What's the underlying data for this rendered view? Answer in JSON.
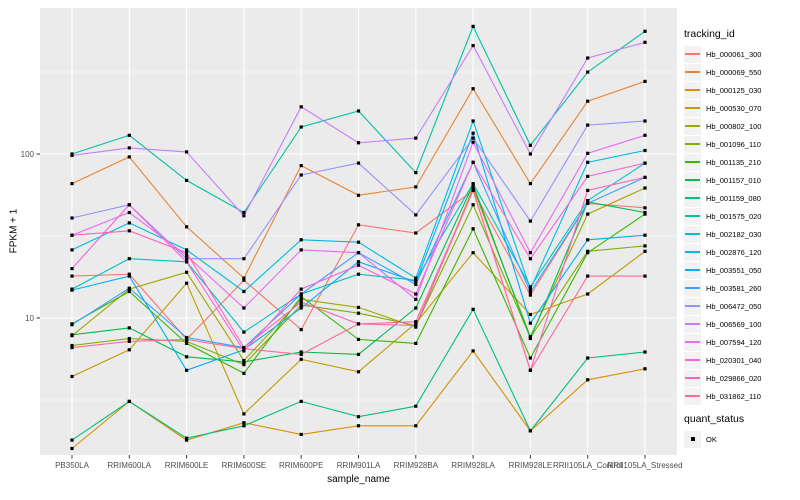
{
  "figure": {
    "background": "#FFFFFF",
    "panel_background": "#EBEBEB",
    "grid_color": "#FFFFFF",
    "tick_color": "#333333",
    "tick_label_color": "#4D4D4D",
    "point_color": "#000000",
    "legend_key_background": "#F2F2F2"
  },
  "chart_data": {
    "type": "line",
    "title": "",
    "xlabel": "sample_name",
    "ylabel": "FPKM + 1",
    "y_scale": "log10",
    "y_ticks": [
      10,
      100
    ],
    "y_minor_ticks": [
      3.162,
      31.62,
      316.2
    ],
    "y_range": [
      1.46,
      776
    ],
    "grid": true,
    "marker": "square",
    "legend_position": "right",
    "categories": [
      "PB350LA",
      "RRIM600LA",
      "RRIM600LE",
      "RRIM600SE",
      "RRIM600PE",
      "RRIM901LA",
      "RRIM928BA",
      "RRIM928LA",
      "RRIM928LE",
      "RRII105LA_Control",
      "RRII105LA_Stressed"
    ],
    "series": [
      {
        "name": "Hb_000061_300",
        "color": "#F8766D",
        "values": [
          18,
          18.5,
          7.4,
          17,
          8.5,
          37,
          33,
          60,
          13.8,
          50,
          47
        ]
      },
      {
        "name": "Hb_000069_550",
        "color": "#EA8331",
        "values": [
          66,
          96,
          36,
          17.5,
          85,
          56,
          63,
          250,
          66,
          210,
          277
        ]
      },
      {
        "name": "Hb_000125_030",
        "color": "#D89000",
        "values": [
          1.6,
          3.1,
          1.8,
          2.3,
          1.95,
          2.2,
          2.2,
          6.3,
          2.05,
          4.2,
          4.9
        ]
      },
      {
        "name": "Hb_000530_070",
        "color": "#C09B00",
        "values": [
          4.4,
          6.4,
          16.3,
          2.6,
          5.6,
          4.7,
          9.3,
          25,
          10.5,
          14,
          25.5
        ]
      },
      {
        "name": "Hb_000802_100",
        "color": "#A3A500",
        "values": [
          7.8,
          15,
          19,
          5.5,
          13,
          11.6,
          8.8,
          62,
          7.7,
          43,
          62
        ]
      },
      {
        "name": "Hb_001096_110",
        "color": "#7CAE00",
        "values": [
          6.8,
          7.5,
          7.2,
          5.2,
          12,
          10.7,
          9,
          49,
          7.6,
          25.5,
          27.5
        ]
      },
      {
        "name": "Hb_001135_210",
        "color": "#39B600",
        "values": [
          9.2,
          14.5,
          7,
          4.6,
          13.5,
          7.4,
          7,
          35,
          5.7,
          25,
          43
        ]
      },
      {
        "name": "Hb_001157_010",
        "color": "#00BB4E",
        "values": [
          7.9,
          8.7,
          5.8,
          5.4,
          6.2,
          6,
          11.5,
          65,
          7.5,
          51,
          44
        ]
      },
      {
        "name": "Hb_001159_080",
        "color": "#00BF7D",
        "values": [
          1.8,
          3.1,
          1.85,
          2.2,
          3.1,
          2.5,
          2.9,
          11.3,
          2.05,
          5.7,
          6.2
        ]
      },
      {
        "name": "Hb_001575_020",
        "color": "#00C1A3",
        "values": [
          100,
          130,
          69,
          44,
          146,
          183,
          77,
          600,
          113,
          316,
          560
        ]
      },
      {
        "name": "Hb_002182_030",
        "color": "#00BFC4",
        "values": [
          15,
          23,
          22,
          8.2,
          14,
          18.5,
          17,
          66,
          15.5,
          52,
          88
        ]
      },
      {
        "name": "Hb_002876_120",
        "color": "#00BAE0",
        "values": [
          26,
          38,
          26,
          14.5,
          30,
          29,
          17.5,
          159,
          15,
          89,
          105
        ]
      },
      {
        "name": "Hb_003551_050",
        "color": "#00B0F6",
        "values": [
          14.8,
          18,
          4.8,
          6.4,
          11.5,
          22,
          16.6,
          134,
          9.3,
          30,
          32
        ]
      },
      {
        "name": "Hb_003581_260",
        "color": "#35A2FF",
        "values": [
          9.1,
          15.2,
          7.6,
          6.6,
          14,
          25,
          16,
          89,
          14.4,
          50,
          72
        ]
      },
      {
        "name": "Hb_006472_050",
        "color": "#9590FF",
        "values": [
          40.7,
          49,
          23,
          23,
          74.5,
          88,
          42.5,
          125,
          39,
          150,
          159
        ]
      },
      {
        "name": "Hb_006569_100",
        "color": "#C77CFF",
        "values": [
          98,
          109,
          103,
          42,
          194,
          117,
          125,
          458,
          100,
          385,
          480
        ]
      },
      {
        "name": "Hb_007594_120",
        "color": "#E76BF3",
        "values": [
          32,
          44,
          24,
          11.5,
          26,
          25,
          13,
          118,
          25,
          101,
          130
        ]
      },
      {
        "name": "Hb_020301_040",
        "color": "#FA62DB",
        "values": [
          20,
          49,
          22,
          6.3,
          15,
          21,
          14,
          89,
          23,
          73,
          88
        ]
      },
      {
        "name": "Hb_029866_020",
        "color": "#FF62BC",
        "values": [
          32,
          34,
          25,
          6.6,
          12.5,
          9.2,
          9,
          60,
          4.8,
          60,
          72
        ]
      },
      {
        "name": "Hb_031862_110",
        "color": "#FF6A98",
        "values": [
          6.6,
          7.2,
          7.4,
          6.5,
          6,
          9.2,
          9.5,
          60,
          4.8,
          18,
          18
        ]
      }
    ],
    "legend": {
      "series_title": "tracking_id",
      "status_title": "quant_status",
      "status_items": [
        {
          "label": "OK",
          "marker": "square",
          "color": "#000000"
        }
      ]
    }
  }
}
